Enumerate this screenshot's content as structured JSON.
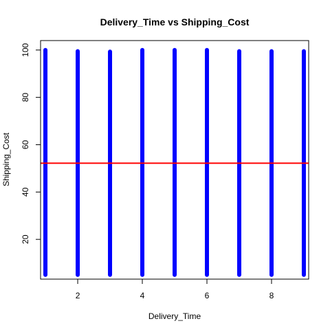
{
  "chart_data": {
    "type": "scatter",
    "title": "Delivery_Time vs Shipping_Cost",
    "xlabel": "Delivery_Time",
    "ylabel": "Shipping_Cost",
    "xlim": [
      0.85,
      9.15
    ],
    "ylim": [
      3.2,
      104
    ],
    "x_ticks": [
      2,
      4,
      6,
      8
    ],
    "y_ticks": [
      20,
      40,
      60,
      80,
      100
    ],
    "x_tick_labels": [
      "2",
      "4",
      "6",
      "8"
    ],
    "y_tick_labels": [
      "20",
      "40",
      "60",
      "80",
      "100"
    ],
    "grid": false,
    "series": [
      {
        "color": "#0000ff",
        "points": [
          {
            "x": 1,
            "y_min": 5,
            "y_max": 100
          },
          {
            "x": 2,
            "y_min": 5,
            "y_max": 99.5
          },
          {
            "x": 3,
            "y_min": 5,
            "y_max": 99.3
          },
          {
            "x": 4,
            "y_min": 5,
            "y_max": 100
          },
          {
            "x": 5,
            "y_min": 5,
            "y_max": 100
          },
          {
            "x": 6,
            "y_min": 5,
            "y_max": 100
          },
          {
            "x": 7,
            "y_min": 5,
            "y_max": 99.5
          },
          {
            "x": 8,
            "y_min": 5,
            "y_max": 99.5
          },
          {
            "x": 9,
            "y_min": 5,
            "y_max": 99.5
          }
        ]
      }
    ],
    "hline": {
      "y": 52.2,
      "color": "#ff0000"
    }
  }
}
